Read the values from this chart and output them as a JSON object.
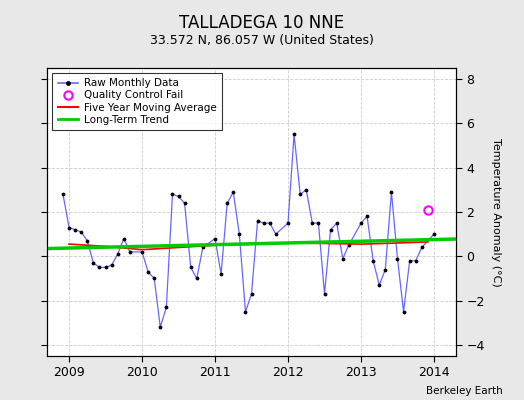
{
  "title": "TALLADEGA 10 NNE",
  "subtitle": "33.572 N, 86.057 W (United States)",
  "credit": "Berkeley Earth",
  "ylabel": "Temperature Anomaly (°C)",
  "ylim": [
    -4.5,
    8.5
  ],
  "yticks": [
    -4,
    -2,
    0,
    2,
    4,
    6,
    8
  ],
  "xlim": [
    2008.7,
    2014.3
  ],
  "xticks": [
    2009,
    2010,
    2011,
    2012,
    2013,
    2014
  ],
  "outer_bg": "#e8e8e8",
  "plot_bg": "#ffffff",
  "grid_color": "#cccccc",
  "raw_line_color": "#6666ff",
  "trend_color": "#00cc00",
  "mavg_color": "red",
  "qc_fail_color": "magenta",
  "raw_data_x": [
    2008.917,
    2009.0,
    2009.083,
    2009.167,
    2009.25,
    2009.333,
    2009.417,
    2009.5,
    2009.583,
    2009.667,
    2009.75,
    2009.833,
    2010.0,
    2010.083,
    2010.167,
    2010.25,
    2010.333,
    2010.417,
    2010.5,
    2010.583,
    2010.667,
    2010.75,
    2010.833,
    2011.0,
    2011.083,
    2011.167,
    2011.25,
    2011.333,
    2011.417,
    2011.5,
    2011.583,
    2011.667,
    2011.75,
    2011.833,
    2012.0,
    2012.083,
    2012.167,
    2012.25,
    2012.333,
    2012.417,
    2012.5,
    2012.583,
    2012.667,
    2012.75,
    2012.833,
    2013.0,
    2013.083,
    2013.167,
    2013.25,
    2013.333,
    2013.417,
    2013.5,
    2013.583,
    2013.667,
    2013.75,
    2013.833,
    2014.0
  ],
  "raw_data_y": [
    2.8,
    1.3,
    1.2,
    1.1,
    0.7,
    -0.3,
    -0.5,
    -0.5,
    -0.4,
    0.1,
    0.8,
    0.2,
    0.2,
    -0.7,
    -1.0,
    -3.2,
    -2.3,
    2.8,
    2.7,
    2.4,
    -0.5,
    -1.0,
    0.4,
    0.8,
    -0.8,
    2.4,
    2.9,
    1.0,
    -2.5,
    -1.7,
    1.6,
    1.5,
    1.5,
    1.0,
    1.5,
    5.5,
    2.8,
    3.0,
    1.5,
    1.5,
    -1.7,
    1.2,
    1.5,
    -0.1,
    0.5,
    1.5,
    1.8,
    -0.2,
    -1.3,
    -0.6,
    2.9,
    -0.1,
    -2.5,
    -0.2,
    -0.2,
    0.4,
    1.0
  ],
  "qc_fail_x": [
    2013.917
  ],
  "qc_fail_y": [
    2.1
  ],
  "trend_x": [
    2008.7,
    2014.3
  ],
  "trend_y": [
    0.35,
    0.78
  ],
  "mavg_x": [
    2009.0,
    2009.5,
    2010.0,
    2010.5,
    2011.0,
    2011.5,
    2012.0,
    2012.5,
    2013.0,
    2013.5,
    2013.917
  ],
  "mavg_y": [
    0.55,
    0.45,
    0.3,
    0.4,
    0.5,
    0.55,
    0.6,
    0.58,
    0.55,
    0.6,
    0.65
  ]
}
